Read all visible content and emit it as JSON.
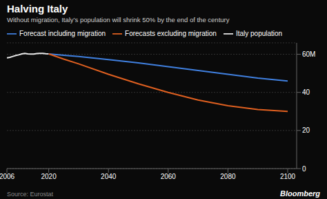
{
  "chart_data": {
    "type": "line",
    "title": "Halving Italy",
    "subtitle": "Without migration, Italy’s population will shrink 50% by the end of the century",
    "annotations": [
      "Source: Eurostat",
      "Bloomberg"
    ],
    "xlim": [
      2006,
      2103
    ],
    "xticks": [
      2006,
      2020,
      2040,
      2060,
      2080,
      2100
    ],
    "ylim": [
      0,
      66
    ],
    "yticks": [
      0,
      20,
      40,
      {
        "value": 60,
        "label": "60M"
      }
    ],
    "grid": true,
    "legend": "top-left",
    "series": [
      {
        "name": "Italy population",
        "color": "#e8e8e8",
        "x": [
          2006,
          2007,
          2008,
          2009,
          2010,
          2011,
          2012,
          2013,
          2014,
          2015,
          2016,
          2017,
          2018,
          2019,
          2020
        ],
        "values": [
          58.1,
          58.4,
          58.9,
          59.4,
          59.7,
          60.2,
          60.5,
          60.2,
          60.1,
          60.1,
          60.4,
          60.5,
          60.5,
          60.3,
          60.2
        ]
      },
      {
        "name": "Forecast including migration",
        "color": "#4080e0",
        "x": [
          2020,
          2025,
          2030,
          2040,
          2050,
          2060,
          2070,
          2080,
          2090,
          2100
        ],
        "values": [
          60.2,
          59.5,
          58.8,
          57.2,
          55.5,
          53.5,
          51.5,
          49.5,
          47.5,
          46.0
        ]
      },
      {
        "name": "Forecasts excluding migration",
        "color": "#e06020",
        "x": [
          2020,
          2025,
          2030,
          2040,
          2050,
          2060,
          2070,
          2080,
          2090,
          2100
        ],
        "values": [
          60.2,
          57.5,
          55.0,
          49.5,
          44.5,
          40.0,
          36.0,
          33.0,
          31.0,
          30.0
        ]
      }
    ]
  }
}
